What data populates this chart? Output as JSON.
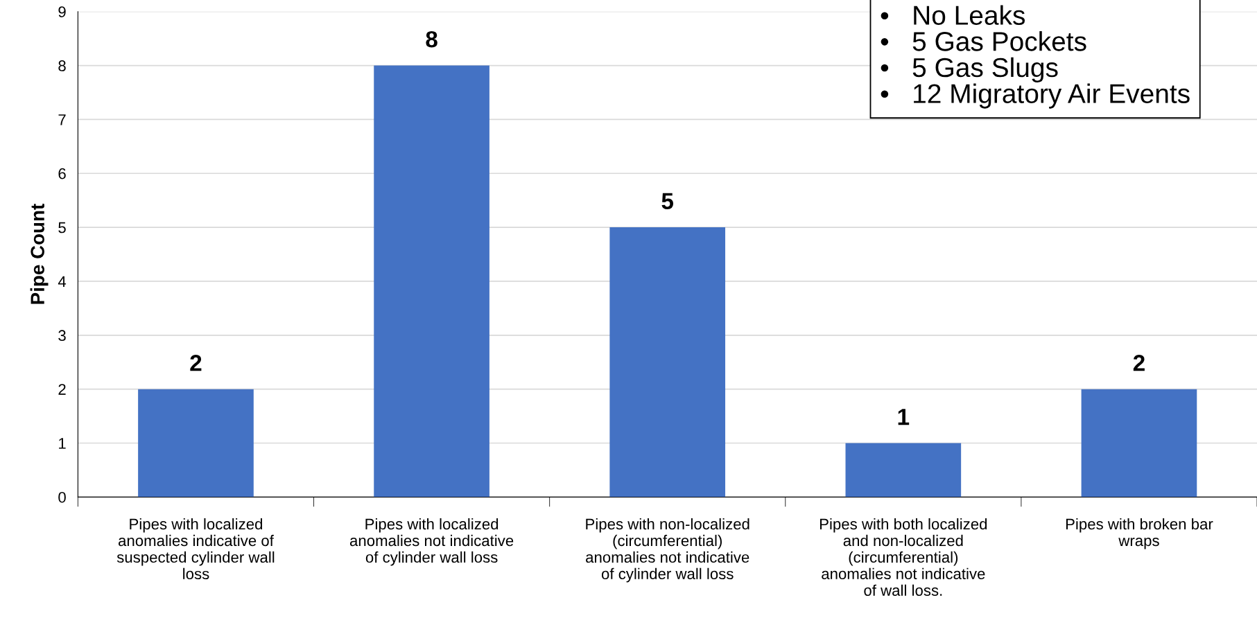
{
  "chart_data": {
    "type": "bar",
    "ylabel": "Pipe Count",
    "categories": [
      "Pipes with localized anomalies indicative of suspected cylinder wall loss",
      "Pipes with localized anomalies not indicative of cylinder wall loss",
      "Pipes with non-localized (circumferential) anomalies not indicative of cylinder wall loss",
      "Pipes with both localized and non-localized (circumferential) anomalies not indicative of wall loss.",
      "Pipes with broken bar wraps"
    ],
    "values": [
      2,
      8,
      5,
      1,
      2
    ],
    "color": "#4472c4",
    "data_labels": true,
    "ylim": [
      0,
      9
    ],
    "yticks": [
      0,
      1,
      2,
      3,
      4,
      5,
      6,
      7,
      8,
      9
    ],
    "grid": "y",
    "legend": false,
    "annotations": [
      "•   No Leaks",
      "•   5 Gas Pockets",
      "•   5 Gas Slugs",
      "•   12 Migratory Air Events"
    ]
  }
}
